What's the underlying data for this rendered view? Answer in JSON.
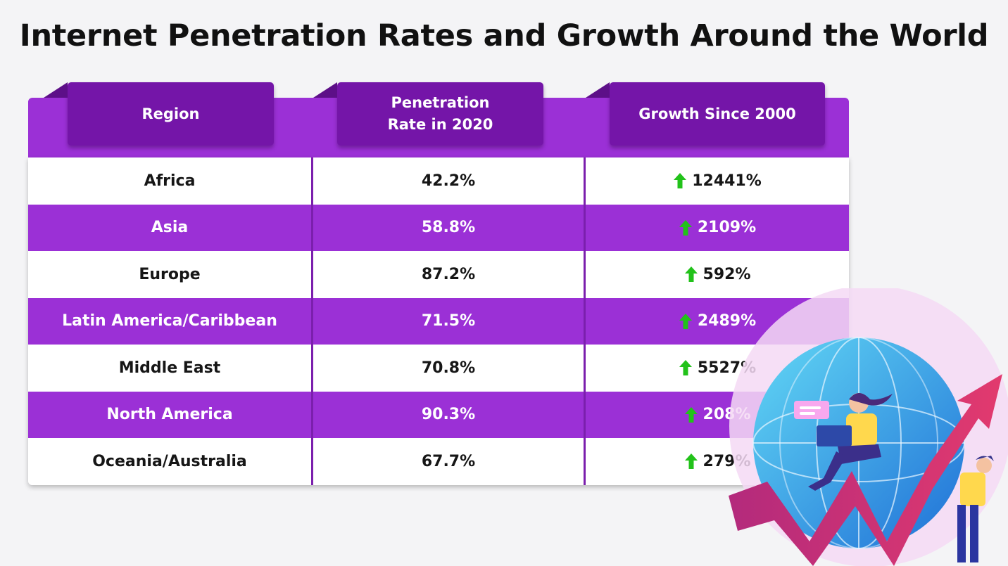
{
  "title": "Internet Penetration Rates and Growth Around the World",
  "table": {
    "headers": [
      "Region",
      "Penetration\nRate in 2020",
      "Growth Since 2000"
    ],
    "rows": [
      {
        "region": "Africa",
        "rate": "42.2%",
        "growth": "12441%"
      },
      {
        "region": "Asia",
        "rate": "58.8%",
        "growth": "2109%"
      },
      {
        "region": "Europe",
        "rate": "87.2%",
        "growth": "592%"
      },
      {
        "region": "Latin America/Caribbean",
        "rate": "71.5%",
        "growth": "2489%"
      },
      {
        "region": "Middle East",
        "rate": "70.8%",
        "growth": "5527%"
      },
      {
        "region": "North America",
        "rate": "90.3%",
        "growth": "208%"
      },
      {
        "region": "Oceania/Australia",
        "rate": "67.7%",
        "growth": "279%"
      }
    ]
  },
  "colors": {
    "header_purple": "#7415a8",
    "band_purple": "#9b30d6",
    "row_purple": "#9b30d6",
    "growth_arrow": "#22c21a"
  },
  "icons": {
    "growth": "up-arrow-icon",
    "illustration": "globe-growth-illustration"
  }
}
